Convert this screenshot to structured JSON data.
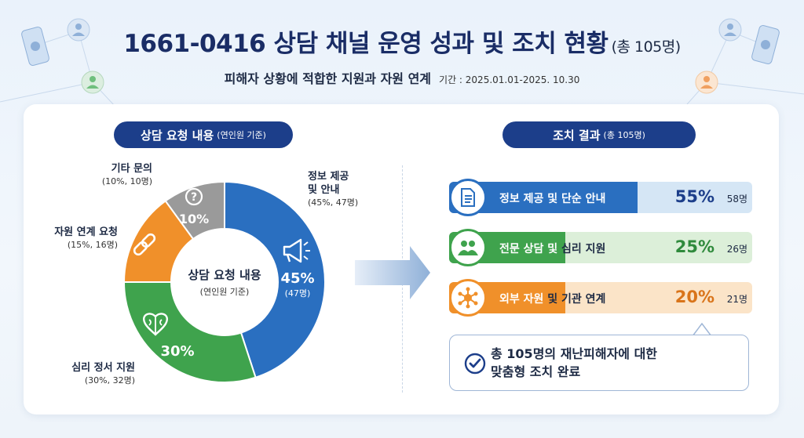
{
  "header": {
    "title": "1661-0416 상담 채널 운영 성과 및 조치 현황",
    "title_total": "(총 105명)",
    "subtitle": "피해자 상황에 적합한 지원과 자원 연계",
    "period": "기간 : 2025.01.01-2025. 10.30"
  },
  "left_panel": {
    "pill_title": "상담 요청 내용",
    "pill_sub": "(연인원 기준)",
    "center_title": "상담 요청 내용",
    "center_sub": "(연인원 기준)"
  },
  "right_panel": {
    "pill_title": "조치 결과",
    "pill_sub": "(총 105명)",
    "summary_line1": "총 105명의 재난피해자에 대한",
    "summary_line2": "맞춤형 조치 완료"
  },
  "colors": {
    "blue": "#2a6fc0",
    "green": "#3fa34d",
    "orange": "#f0902a",
    "gray": "#9a9a9a",
    "navy": "#1c3e8a"
  },
  "chart_data": [
    {
      "type": "pie",
      "title": "상담 요청 내용 (연인원 기준)",
      "slices": [
        {
          "name": "정보 제공 및 안내",
          "percent": 45,
          "count": 47,
          "pct_label": "45%",
          "count_label": "(47명)",
          "legend_name_1": "정보 제공",
          "legend_name_2": "및 안내",
          "legend_sub": "(45%, 47명)",
          "color": "#2a6fc0",
          "icon": "megaphone-icon"
        },
        {
          "name": "심리 정서 지원",
          "percent": 30,
          "count": 32,
          "pct_label": "30%",
          "legend_name_1": "심리 정서 지원",
          "legend_sub": "(30%, 32명)",
          "color": "#3fa34d",
          "icon": "brain-heart-icon"
        },
        {
          "name": "자원 연계 요청",
          "percent": 15,
          "count": 16,
          "legend_name_1": "자원 연계 요청",
          "legend_sub": "(15%, 16명)",
          "color": "#f0902a",
          "icon": "link-icon"
        },
        {
          "name": "기타 문의",
          "percent": 10,
          "count": 10,
          "pct_label": "10%",
          "legend_name_1": "기타 문의",
          "legend_sub": "(10%, 10명)",
          "color": "#9a9a9a",
          "icon": "question-icon"
        }
      ]
    },
    {
      "type": "bar",
      "title": "조치 결과 (총 105명)",
      "rows": [
        {
          "label_a": "정보 제공 및 단순 안내",
          "label_b": "",
          "percent": 55,
          "pct_label": "55%",
          "count_label": "58명",
          "color": "#2a6fc0",
          "bg": "#d5e6f5",
          "icon": "document-icon"
        },
        {
          "label_a": "전문 상담 및",
          "label_b": " 심리 지원",
          "percent": 25,
          "pct_label": "25%",
          "count_label": "26명",
          "color": "#3fa34d",
          "bg": "#dcefd9",
          "icon": "people-icon"
        },
        {
          "label_a": "외부 자원",
          "label_b": " 및 기관 연계",
          "percent": 20,
          "pct_label": "20%",
          "count_label": "21명",
          "color": "#f0902a",
          "bg": "#fbe4c8",
          "icon": "network-icon"
        }
      ]
    }
  ]
}
